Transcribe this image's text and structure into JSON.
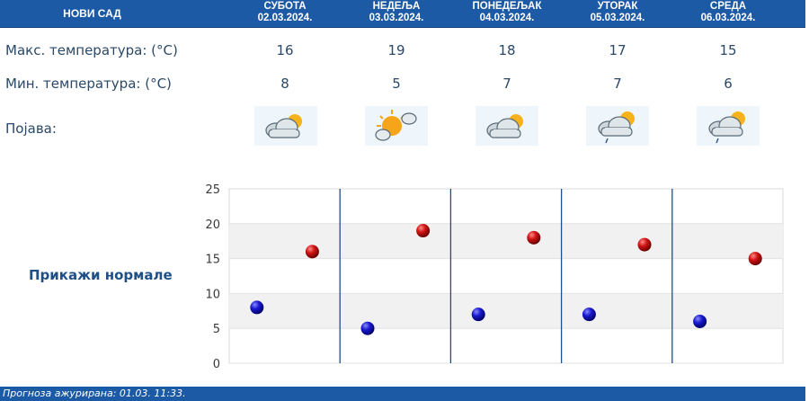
{
  "header": {
    "city": "НОВИ САД"
  },
  "days": [
    {
      "name": "СУБОТА",
      "date": "02.03.2024.",
      "max": "16",
      "min": "8",
      "icon": "cloudy-sun-icon"
    },
    {
      "name": "НЕДЕЉА",
      "date": "03.03.2024.",
      "max": "19",
      "min": "5",
      "icon": "sun-behind-cloud-icon"
    },
    {
      "name": "ПОНЕДЕЉАК",
      "date": "04.03.2024.",
      "max": "18",
      "min": "7",
      "icon": "cloudy-sun-icon"
    },
    {
      "name": "УТОРАК",
      "date": "05.03.2024.",
      "max": "17",
      "min": "7",
      "icon": "cloud-sun-rain-icon"
    },
    {
      "name": "СРЕДА",
      "date": "06.03.2024.",
      "max": "15",
      "min": "6",
      "icon": "cloud-sun-rain-icon"
    }
  ],
  "labels": {
    "max_temp": "Макс. температура: (°C)",
    "min_temp": "Мин. температура: (°C)",
    "phenomenon": "Појава:"
  },
  "normals_button": "Прикажи нормале",
  "footer": "Прогноза ажурирана:  01.03.  11:33.",
  "colors": {
    "header": "#1d5aa6",
    "max_point": "#cc1010",
    "min_point": "#1818b8"
  },
  "chart_data": {
    "type": "scatter",
    "categories": [
      "02.03.2024.",
      "03.03.2024.",
      "04.03.2024.",
      "05.03.2024.",
      "06.03.2024."
    ],
    "series": [
      {
        "values": [
          16,
          19,
          18,
          17,
          15
        ],
        "color": "#cc1010"
      },
      {
        "values": [
          8,
          5,
          7,
          7,
          6
        ],
        "color": "#1818b8"
      }
    ],
    "ylim": [
      0,
      25
    ],
    "yticks": [
      "0",
      "5",
      "10",
      "15",
      "20",
      "25"
    ],
    "grid": true
  }
}
